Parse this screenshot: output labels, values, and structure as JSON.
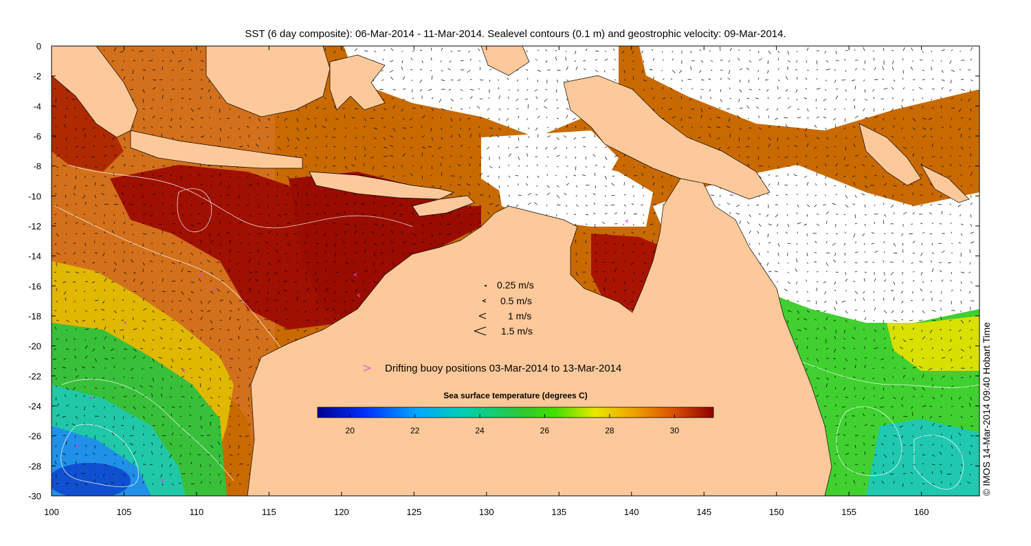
{
  "title": "SST (6 day composite): 06-Mar-2014 - 11-Mar-2014. Sealevel contours (0.1 m) and geostrophic velocity: 09-Mar-2014.",
  "credit": "© IMOS 14-Mar-2014 09:40 Hobart Time",
  "x_ticks": [
    "100",
    "105",
    "110",
    "115",
    "120",
    "125",
    "130",
    "135",
    "140",
    "145",
    "150",
    "155",
    "160"
  ],
  "y_ticks": [
    "0",
    "-2",
    "-4",
    "-6",
    "-8",
    "-10",
    "-12",
    "-14",
    "-16",
    "-18",
    "-20",
    "-22",
    "-24",
    "-26",
    "-28",
    "-30"
  ],
  "velocity_legend": [
    "0.25 m/s",
    "0.5 m/s",
    "1 m/s",
    "1.5 m/s"
  ],
  "buoy_legend": "Drifting buoy positions 03-Mar-2014 to 13-Mar-2014",
  "colorbar": {
    "title": "Sea surface temperature (degrees C)",
    "ticks": [
      "20",
      "22",
      "24",
      "26",
      "28",
      "30"
    ],
    "range": [
      19,
      31.2
    ]
  },
  "colors": {
    "land": "#fdc99a",
    "buoy": "#e040e0",
    "cloud": "#ffffff"
  }
}
